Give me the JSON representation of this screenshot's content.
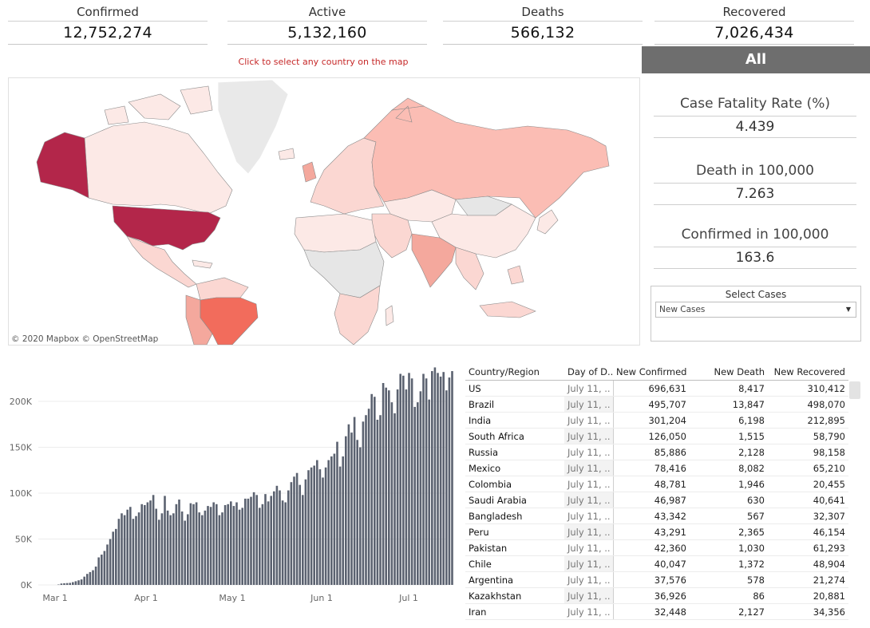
{
  "kpis": {
    "confirmed": {
      "label": "Confirmed",
      "value": "12,752,274"
    },
    "active": {
      "label": "Active",
      "value": "5,132,160"
    },
    "deaths": {
      "label": "Deaths",
      "value": "566,132"
    },
    "recovered": {
      "label": "Recovered",
      "value": "7,026,434"
    }
  },
  "map": {
    "hint": "Click to select any country on the map",
    "attribution": "© 2020 Mapbox © OpenStreetMap",
    "colors": {
      "highest": "#b3264a",
      "high": "#f26c5c",
      "medium": "#f4a89d",
      "low": "#fbd7d2",
      "lowest": "#fce9e6",
      "nodata": "#e6e6e6"
    }
  },
  "panel": {
    "all_label": "All",
    "cfr": {
      "label": "Case Fatality Rate (%)",
      "value": "4.439"
    },
    "death_rate": {
      "label": "Death in 100,000",
      "value": "7.263"
    },
    "conf_rate": {
      "label": "Confirmed in 100,000",
      "value": "163.6"
    },
    "select": {
      "title": "Select Cases",
      "value": "New Cases"
    }
  },
  "chart_data": {
    "type": "bar",
    "x_tick_labels": [
      "Mar 1",
      "Apr 1",
      "May 1",
      "Jun 1",
      "Jul 1"
    ],
    "y_tick_labels": [
      "0K",
      "50K",
      "100K",
      "150K",
      "200K"
    ],
    "ylim": [
      0,
      240000
    ],
    "bar_color": "#5b6270",
    "grid": true,
    "values": [
      400,
      1500,
      1800,
      2000,
      2200,
      3000,
      4000,
      5000,
      6000,
      9000,
      12000,
      14000,
      16000,
      20000,
      30000,
      33000,
      37000,
      44000,
      50000,
      58000,
      61000,
      72000,
      78000,
      76000,
      82000,
      85000,
      72000,
      75000,
      79000,
      88000,
      87000,
      90000,
      92000,
      98000,
      83000,
      71000,
      78000,
      97000,
      81000,
      76000,
      78000,
      88000,
      93000,
      80000,
      70000,
      77000,
      89000,
      88000,
      90000,
      79000,
      76000,
      81000,
      86000,
      85000,
      90000,
      88000,
      76000,
      79000,
      87000,
      88000,
      91000,
      86000,
      90000,
      82000,
      84000,
      94000,
      94000,
      96000,
      101000,
      98000,
      84000,
      88000,
      99000,
      91000,
      97000,
      102000,
      108000,
      103000,
      92000,
      90000,
      103000,
      112000,
      118000,
      122000,
      109000,
      98000,
      115000,
      125000,
      128000,
      130000,
      136000,
      126000,
      117000,
      128000,
      136000,
      140000,
      143000,
      156000,
      129000,
      140000,
      162000,
      175000,
      166000,
      183000,
      158000,
      150000,
      178000,
      185000,
      192000,
      208000,
      205000,
      180000,
      185000,
      220000,
      215000,
      212000,
      199000,
      187000,
      213000,
      230000,
      228000,
      213000,
      231000,
      225000,
      194000,
      199000,
      211000,
      230000,
      225000,
      202000,
      233000,
      237000,
      231000,
      227000,
      232000,
      212000,
      226000,
      233000
    ]
  },
  "table": {
    "headers": [
      "Country/Region",
      "Day of D..",
      "New Confirmed",
      "New Death",
      "New Recovered"
    ],
    "rows": [
      {
        "country": "US",
        "date": "July 11, ..",
        "confirmed": "696,631",
        "death": "8,417",
        "recovered": "310,412"
      },
      {
        "country": "Brazil",
        "date": "July 11, ..",
        "confirmed": "495,707",
        "death": "13,847",
        "recovered": "498,070"
      },
      {
        "country": "India",
        "date": "July 11, ..",
        "confirmed": "301,204",
        "death": "6,198",
        "recovered": "212,895"
      },
      {
        "country": "South Africa",
        "date": "July 11, ..",
        "confirmed": "126,050",
        "death": "1,515",
        "recovered": "58,790"
      },
      {
        "country": "Russia",
        "date": "July 11, ..",
        "confirmed": "85,886",
        "death": "2,128",
        "recovered": "98,158"
      },
      {
        "country": "Mexico",
        "date": "July 11, ..",
        "confirmed": "78,416",
        "death": "8,082",
        "recovered": "65,210"
      },
      {
        "country": "Colombia",
        "date": "July 11, ..",
        "confirmed": "48,781",
        "death": "1,946",
        "recovered": "20,455"
      },
      {
        "country": "Saudi Arabia",
        "date": "July 11, ..",
        "confirmed": "46,987",
        "death": "630",
        "recovered": "40,641"
      },
      {
        "country": "Bangladesh",
        "date": "July 11, ..",
        "confirmed": "43,342",
        "death": "567",
        "recovered": "32,307"
      },
      {
        "country": "Peru",
        "date": "July 11, ..",
        "confirmed": "43,291",
        "death": "2,365",
        "recovered": "46,154"
      },
      {
        "country": "Pakistan",
        "date": "July 11, ..",
        "confirmed": "42,360",
        "death": "1,030",
        "recovered": "61,293"
      },
      {
        "country": "Chile",
        "date": "July 11, ..",
        "confirmed": "40,047",
        "death": "1,372",
        "recovered": "48,904"
      },
      {
        "country": "Argentina",
        "date": "July 11, ..",
        "confirmed": "37,576",
        "death": "578",
        "recovered": "21,274"
      },
      {
        "country": "Kazakhstan",
        "date": "July 11, ..",
        "confirmed": "36,926",
        "death": "86",
        "recovered": "20,881"
      },
      {
        "country": "Iran",
        "date": "July 11, ..",
        "confirmed": "32,448",
        "death": "2,127",
        "recovered": "34,356"
      }
    ]
  }
}
